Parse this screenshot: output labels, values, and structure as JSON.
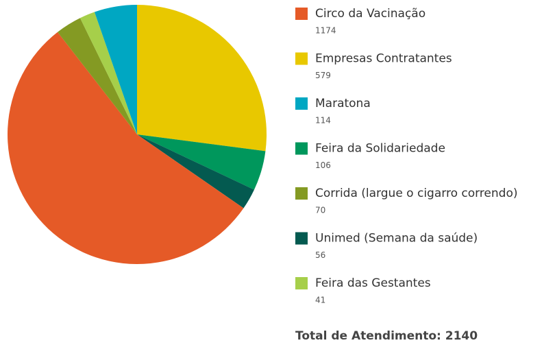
{
  "chart_data": {
    "type": "pie",
    "categories": [
      "Circo da Vacinação",
      "Empresas Contratantes",
      "Maratona",
      "Feira da Solidariedade",
      "Corrida (largue o cigarro correndo)",
      "Unimed (Semana da saúde)",
      "Feira das Gestantes"
    ],
    "values": [
      1174,
      579,
      114,
      106,
      70,
      56,
      41
    ],
    "colors": [
      "#e55a27",
      "#e8c800",
      "#00a7c2",
      "#00975c",
      "#849a23",
      "#045a50",
      "#a6cf4a"
    ],
    "total_label": "Total de Atendimento: 2140"
  }
}
